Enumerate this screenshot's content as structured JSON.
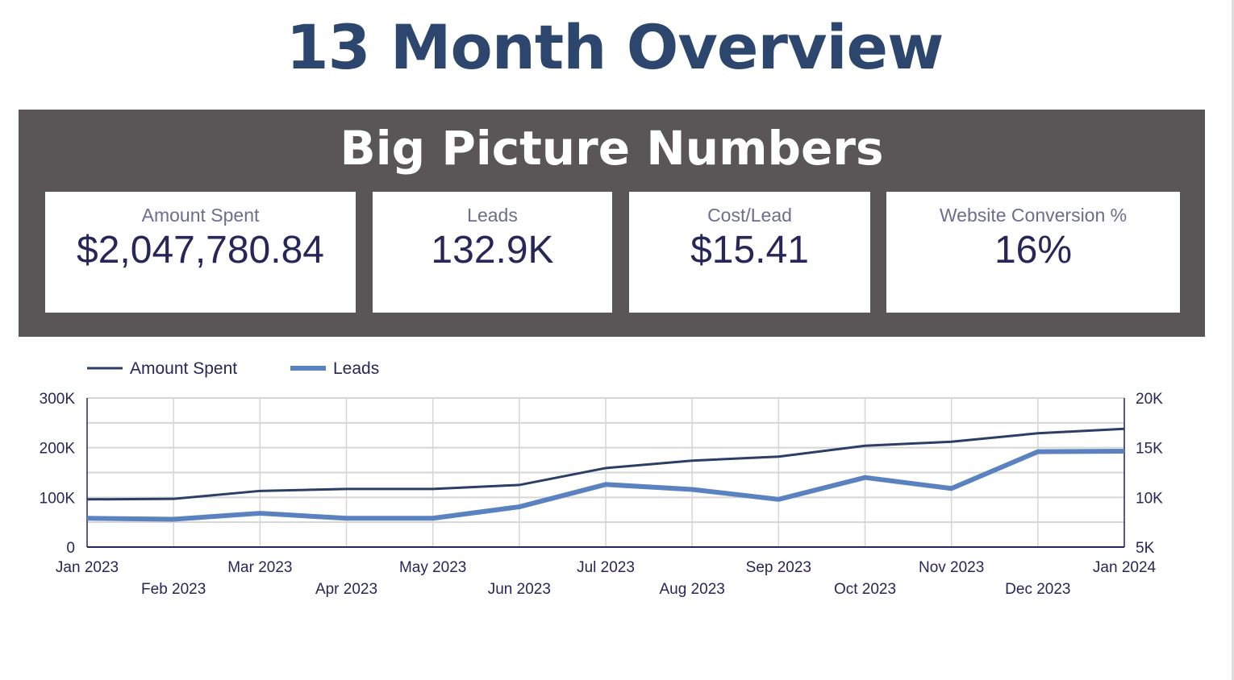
{
  "title": "13 Month Overview",
  "panel_title": "Big Picture Numbers",
  "kpis": [
    {
      "label": "Amount Spent",
      "value": "$2,047,780.84"
    },
    {
      "label": "Leads",
      "value": "132.9K"
    },
    {
      "label": "Cost/Lead",
      "value": "$15.41"
    },
    {
      "label": "Website Conversion %",
      "value": "16%"
    }
  ],
  "chart_data": {
    "type": "line",
    "categories": [
      "Jan 2023",
      "Feb 2023",
      "Mar 2023",
      "Apr 2023",
      "May 2023",
      "Jun 2023",
      "Jul 2023",
      "Aug 2023",
      "Sep 2023",
      "Oct 2023",
      "Nov 2023",
      "Dec 2023",
      "Jan 2024"
    ],
    "series": [
      {
        "name": "Amount Spent",
        "axis": "left",
        "color": "#2c3e66",
        "values": [
          96000,
          97000,
          113000,
          117000,
          117000,
          125000,
          159000,
          174000,
          182000,
          204000,
          212000,
          229000,
          238000
        ]
      },
      {
        "name": "Leads",
        "axis": "right",
        "color": "#5b82c0",
        "values": [
          7900,
          7800,
          8400,
          7900,
          7900,
          9050,
          11300,
          10800,
          9800,
          12000,
          10900,
          14600,
          14650
        ]
      }
    ],
    "left_axis": {
      "ylim": [
        0,
        300000
      ],
      "ticks": [
        "0",
        "100K",
        "200K",
        "300K"
      ]
    },
    "right_axis": {
      "ylim": [
        5000,
        20000
      ],
      "ticks": [
        "5K",
        "10K",
        "15K",
        "20K"
      ]
    },
    "legend": "top-left",
    "grid": true
  }
}
